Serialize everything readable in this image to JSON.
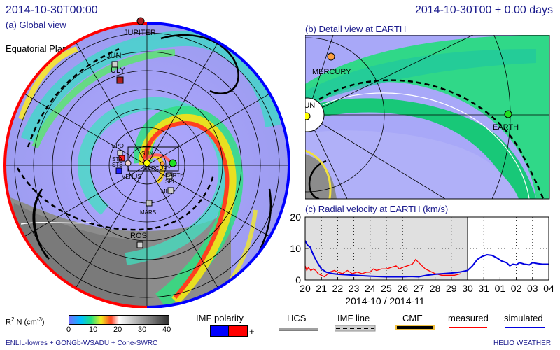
{
  "header": {
    "timestamp": "2014-10-30T00:00",
    "time_offset": "2014-10-30T00 + 0.00 days"
  },
  "global_view": {
    "title": "(a) Global view",
    "plane_label": "Equatorial Plane",
    "object_labels": [
      "JUPITER",
      "JUN",
      "ULY",
      "EPO",
      "STA",
      "STB",
      "VENUS",
      "SUN",
      "MERCURY",
      "EARTH",
      "SPI",
      "MI",
      "MARS",
      "ROS"
    ]
  },
  "detail_view": {
    "title": "(b) Detail view at EARTH",
    "labels": [
      "MERCURY",
      "SUN",
      "EARTH"
    ]
  },
  "chart_data": {
    "type": "line",
    "title": "(c) Radial velocity at EARTH (km/s)",
    "xlabel": "2014-10 / 2014-11",
    "x_ticks": [
      "20",
      "21",
      "22",
      "23",
      "24",
      "25",
      "26",
      "27",
      "28",
      "29",
      "30",
      "31",
      "01",
      "02",
      "03",
      "04"
    ],
    "ylim": [
      0,
      20
    ],
    "y_ticks": [
      0,
      10,
      20
    ],
    "grid": true,
    "shaded_region_until_day_index": 10,
    "series": [
      {
        "name": "measured",
        "color": "#ff0000",
        "points": [
          [
            0.0,
            4.5
          ],
          [
            0.1,
            3.0
          ],
          [
            0.2,
            4.0
          ],
          [
            0.35,
            3.0
          ],
          [
            0.5,
            3.5
          ],
          [
            0.65,
            3.0
          ],
          [
            0.8,
            2.0
          ],
          [
            1.0,
            1.5
          ],
          [
            1.2,
            1.0
          ],
          [
            1.5,
            2.5
          ],
          [
            1.8,
            3.0
          ],
          [
            2.0,
            2.5
          ],
          [
            2.3,
            2.0
          ],
          [
            2.6,
            3.0
          ],
          [
            2.9,
            2.0
          ],
          [
            3.2,
            2.5
          ],
          [
            3.5,
            2.0
          ],
          [
            3.8,
            2.5
          ],
          [
            4.0,
            2.5
          ],
          [
            4.2,
            3.5
          ],
          [
            4.4,
            3.0
          ],
          [
            4.7,
            3.5
          ],
          [
            5.0,
            3.5
          ],
          [
            5.3,
            4.0
          ],
          [
            5.6,
            4.5
          ],
          [
            5.8,
            3.5
          ],
          [
            6.0,
            4.0
          ],
          [
            6.3,
            4.5
          ],
          [
            6.6,
            5.0
          ],
          [
            6.8,
            6.5
          ],
          [
            7.0,
            5.5
          ],
          [
            7.2,
            4.5
          ],
          [
            7.4,
            3.5
          ],
          [
            7.6,
            3.0
          ],
          [
            8.0,
            2.0
          ],
          [
            8.4,
            1.5
          ],
          [
            8.8,
            1.5
          ],
          [
            9.2,
            1.5
          ],
          [
            9.6,
            2.0
          ]
        ]
      },
      {
        "name": "simulated",
        "color": "#0000e0",
        "points": [
          [
            0.0,
            12.5
          ],
          [
            0.15,
            11.0
          ],
          [
            0.3,
            10.5
          ],
          [
            0.5,
            8.0
          ],
          [
            0.7,
            6.0
          ],
          [
            1.0,
            3.5
          ],
          [
            1.3,
            2.5
          ],
          [
            1.7,
            2.0
          ],
          [
            2.0,
            1.8
          ],
          [
            3.0,
            1.5
          ],
          [
            4.0,
            1.2
          ],
          [
            5.0,
            1.0
          ],
          [
            6.0,
            1.0
          ],
          [
            6.5,
            1.1
          ],
          [
            7.0,
            1.0
          ],
          [
            7.5,
            1.5
          ],
          [
            8.0,
            1.8
          ],
          [
            8.5,
            2.0
          ],
          [
            9.0,
            2.2
          ],
          [
            9.5,
            2.5
          ],
          [
            10.0,
            3.0
          ],
          [
            10.3,
            4.5
          ],
          [
            10.6,
            6.5
          ],
          [
            10.9,
            7.5
          ],
          [
            11.2,
            8.0
          ],
          [
            11.5,
            7.8
          ],
          [
            11.8,
            7.0
          ],
          [
            12.1,
            6.0
          ],
          [
            12.4,
            5.5
          ],
          [
            12.6,
            4.5
          ],
          [
            12.8,
            5.0
          ],
          [
            13.0,
            4.8
          ],
          [
            13.2,
            5.5
          ],
          [
            13.5,
            5.0
          ],
          [
            13.8,
            4.8
          ],
          [
            14.0,
            5.5
          ],
          [
            14.3,
            5.2
          ],
          [
            14.6,
            5.0
          ],
          [
            15.0,
            5.0
          ]
        ]
      }
    ]
  },
  "legend": {
    "density_label_main": "R",
    "density_label_sup": "2",
    "density_label_rest": " N  (cm",
    "density_label_sup2": "-3",
    "density_label_end": ")",
    "density_ticks": [
      "0",
      "10",
      "20",
      "30",
      "40"
    ],
    "imf_title": "IMF polarity",
    "imf_minus": "–",
    "imf_plus": "+",
    "imf_colors": {
      "minus": "#0000ff",
      "plus": "#ff0000"
    },
    "hcs": "HCS",
    "imf_line": "IMF line",
    "cme": "CME",
    "measured": "measured",
    "simulated": "simulated"
  },
  "footer": {
    "model": "ENLIL-lowres + GONGb-WSADU + Cone-SWRC",
    "brand": "HELIO  WEATHER"
  }
}
